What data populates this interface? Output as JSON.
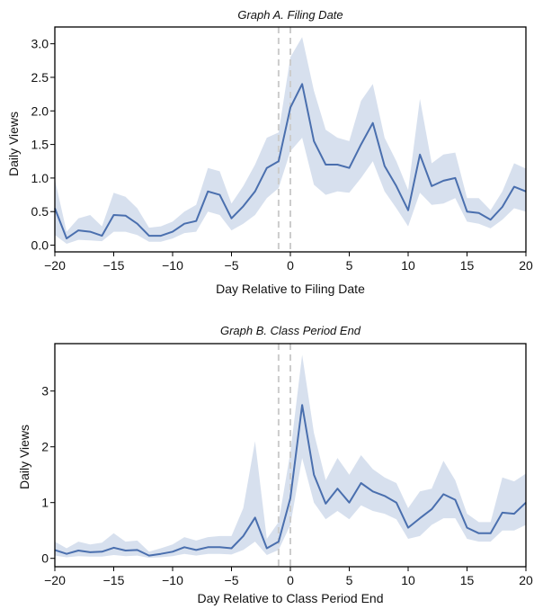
{
  "chart_data": [
    {
      "type": "line",
      "title": "Graph A. Filing Date",
      "xlabel": "Day Relative to Filing Date",
      "ylabel": "Daily Views",
      "xlim": [
        -20,
        20
      ],
      "ylim": [
        -0.1,
        3.25
      ],
      "xticks": [
        -20,
        -15,
        -10,
        -5,
        0,
        5,
        10,
        15,
        20
      ],
      "xtick_labels": [
        "−20",
        "−15",
        "−10",
        "−5",
        "0",
        "5",
        "10",
        "15",
        "20"
      ],
      "yticks": [
        0,
        0.5,
        1,
        1.5,
        2,
        2.5,
        3
      ],
      "ytick_labels": [
        "0.0",
        "0.5",
        "1.0",
        "1.5",
        "2.0",
        "2.5",
        "3.0"
      ],
      "vlines": [
        -1,
        0
      ],
      "grid": false,
      "legend": false,
      "colors": {
        "line": "#4a6fae",
        "band": "#c9d5e8",
        "vline": "#cccccc"
      },
      "series": [
        {
          "x": [
            -20,
            -19,
            -18,
            -17,
            -16,
            -15,
            -14,
            -13,
            -12,
            -11,
            -10,
            -9,
            -8,
            -7,
            -6,
            -5,
            -4,
            -3,
            -2,
            -1,
            0,
            1,
            2,
            3,
            4,
            5,
            6,
            7,
            8,
            9,
            10,
            11,
            12,
            13,
            14,
            15,
            16,
            17,
            18,
            19,
            20
          ],
          "y": [
            0.55,
            0.1,
            0.22,
            0.2,
            0.14,
            0.45,
            0.44,
            0.32,
            0.14,
            0.14,
            0.2,
            0.32,
            0.36,
            0.8,
            0.75,
            0.4,
            0.58,
            0.8,
            1.15,
            1.25,
            2.05,
            2.4,
            1.55,
            1.2,
            1.2,
            1.15,
            1.5,
            1.82,
            1.18,
            0.88,
            0.52,
            1.35,
            0.88,
            0.96,
            1.0,
            0.5,
            0.48,
            0.38,
            0.57,
            0.87,
            0.8
          ],
          "lower": [
            0.15,
            0.02,
            0.08,
            0.07,
            0.06,
            0.2,
            0.2,
            0.15,
            0.05,
            0.05,
            0.1,
            0.18,
            0.2,
            0.5,
            0.45,
            0.22,
            0.32,
            0.45,
            0.7,
            0.85,
            1.4,
            1.6,
            0.9,
            0.75,
            0.8,
            0.78,
            1.0,
            1.25,
            0.8,
            0.55,
            0.28,
            0.78,
            0.6,
            0.62,
            0.7,
            0.35,
            0.32,
            0.25,
            0.38,
            0.55,
            0.5
          ],
          "upper": [
            0.98,
            0.2,
            0.4,
            0.45,
            0.28,
            0.78,
            0.72,
            0.55,
            0.26,
            0.28,
            0.35,
            0.5,
            0.6,
            1.15,
            1.1,
            0.62,
            0.88,
            1.2,
            1.6,
            1.68,
            2.8,
            3.1,
            2.3,
            1.72,
            1.6,
            1.55,
            2.15,
            2.4,
            1.6,
            1.25,
            0.82,
            2.18,
            1.22,
            1.35,
            1.38,
            0.7,
            0.7,
            0.52,
            0.8,
            1.22,
            1.14
          ]
        }
      ]
    },
    {
      "type": "line",
      "title": "Graph B. Class Period End",
      "xlabel": "Day Relative to Class Period End",
      "ylabel": "Daily Views",
      "xlim": [
        -20,
        20
      ],
      "ylim": [
        -0.15,
        3.85
      ],
      "xticks": [
        -20,
        -15,
        -10,
        -5,
        0,
        5,
        10,
        15,
        20
      ],
      "xtick_labels": [
        "−20",
        "−15",
        "−10",
        "−5",
        "0",
        "5",
        "10",
        "15",
        "20"
      ],
      "yticks": [
        0,
        1,
        2,
        3
      ],
      "ytick_labels": [
        "0",
        "1",
        "2",
        "3"
      ],
      "vlines": [
        -1,
        0
      ],
      "grid": false,
      "legend": false,
      "colors": {
        "line": "#4a6fae",
        "band": "#c9d5e8",
        "vline": "#cccccc"
      },
      "series": [
        {
          "x": [
            -20,
            -19,
            -18,
            -17,
            -16,
            -15,
            -14,
            -13,
            -12,
            -11,
            -10,
            -9,
            -8,
            -7,
            -6,
            -5,
            -4,
            -3,
            -2,
            -1,
            0,
            1,
            2,
            3,
            4,
            5,
            6,
            7,
            8,
            9,
            10,
            11,
            12,
            13,
            14,
            15,
            16,
            17,
            18,
            19,
            20
          ],
          "y": [
            0.15,
            0.08,
            0.14,
            0.11,
            0.12,
            0.19,
            0.14,
            0.15,
            0.05,
            0.08,
            0.12,
            0.2,
            0.15,
            0.2,
            0.2,
            0.18,
            0.4,
            0.73,
            0.18,
            0.3,
            1.08,
            2.75,
            1.5,
            0.98,
            1.25,
            1.0,
            1.35,
            1.2,
            1.12,
            1.0,
            0.55,
            0.72,
            0.88,
            1.15,
            1.05,
            0.55,
            0.45,
            0.45,
            0.82,
            0.8,
            1.0
          ],
          "lower": [
            0.05,
            0.02,
            0.04,
            0.03,
            0.03,
            0.06,
            0.04,
            0.05,
            0.01,
            0.02,
            0.04,
            0.08,
            0.05,
            0.08,
            0.08,
            0.07,
            0.15,
            0.3,
            0.06,
            0.15,
            0.6,
            1.8,
            1.0,
            0.7,
            0.85,
            0.7,
            0.95,
            0.85,
            0.8,
            0.7,
            0.35,
            0.4,
            0.6,
            0.72,
            0.72,
            0.35,
            0.3,
            0.3,
            0.5,
            0.5,
            0.6
          ],
          "upper": [
            0.3,
            0.18,
            0.3,
            0.25,
            0.28,
            0.45,
            0.3,
            0.32,
            0.12,
            0.18,
            0.25,
            0.38,
            0.32,
            0.38,
            0.4,
            0.4,
            0.9,
            2.1,
            0.35,
            0.65,
            1.9,
            3.65,
            2.25,
            1.4,
            1.8,
            1.5,
            1.85,
            1.6,
            1.45,
            1.35,
            0.9,
            1.2,
            1.25,
            1.75,
            1.4,
            0.8,
            0.65,
            0.65,
            1.45,
            1.38,
            1.52
          ]
        }
      ]
    }
  ]
}
